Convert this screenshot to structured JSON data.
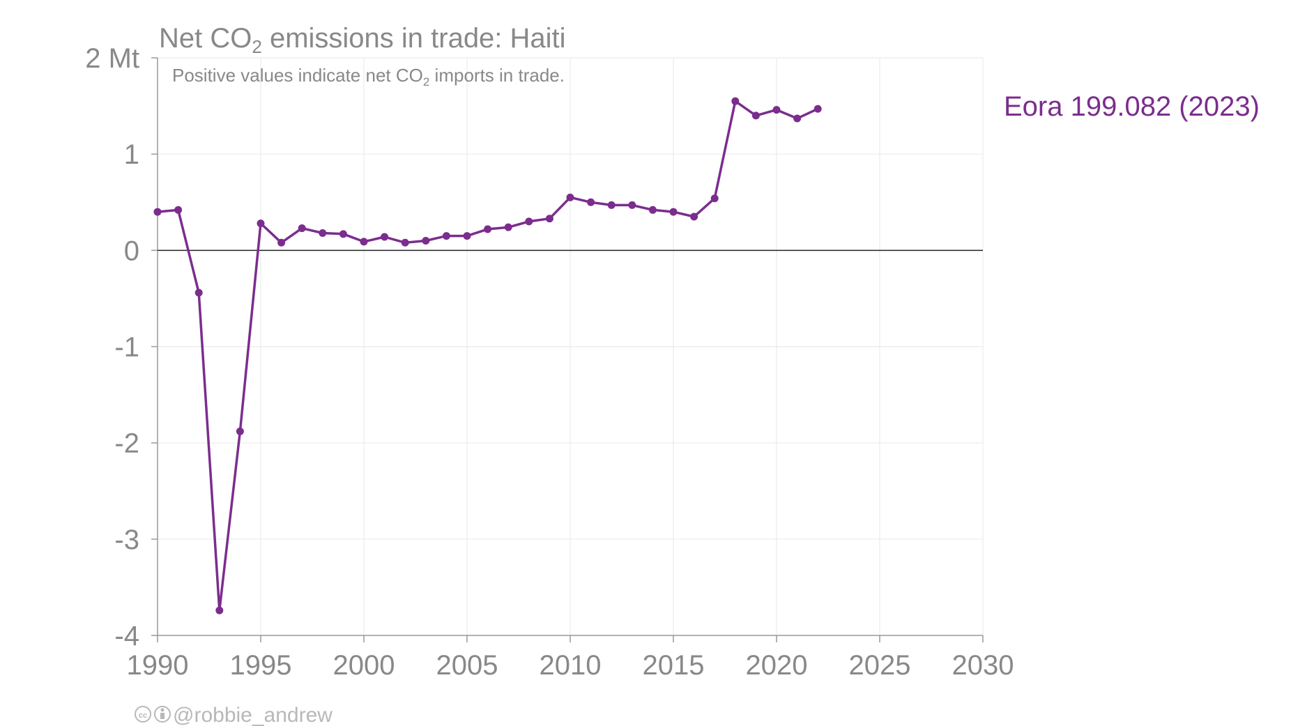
{
  "chart_data": {
    "type": "line",
    "title": {
      "prefix": "Net CO",
      "subscript": "2",
      "suffix": " emissions in trade: Haiti"
    },
    "subtitle": {
      "prefix": "Positive values indicate net CO",
      "subscript": "2",
      "suffix": " imports in trade."
    },
    "y_unit": "Mt",
    "y_tick_labels": [
      "2 Mt",
      "1",
      "0",
      "-1",
      "-2",
      "-3",
      "-4"
    ],
    "y_ticks": [
      2,
      1,
      0,
      -1,
      -2,
      -3,
      -4
    ],
    "ylim": [
      -4,
      2
    ],
    "x_ticks": [
      1990,
      1995,
      2000,
      2005,
      2010,
      2015,
      2020,
      2025,
      2030
    ],
    "x_tick_labels": [
      "1990",
      "1995",
      "2000",
      "2005",
      "2010",
      "2015",
      "2020",
      "2025",
      "2030"
    ],
    "xlim": [
      1990,
      2030
    ],
    "grid": true,
    "zero_line": true,
    "series": [
      {
        "name": "Eora 199.082 (2023)",
        "color": "#7b2d8e",
        "x": [
          1990,
          1991,
          1992,
          1993,
          1994,
          1995,
          1996,
          1997,
          1998,
          1999,
          2000,
          2001,
          2002,
          2003,
          2004,
          2005,
          2006,
          2007,
          2008,
          2009,
          2010,
          2011,
          2012,
          2013,
          2014,
          2015,
          2016,
          2017,
          2018,
          2019,
          2020,
          2021,
          2022
        ],
        "values": [
          0.4,
          0.42,
          -0.44,
          -3.74,
          -1.88,
          0.28,
          0.08,
          0.23,
          0.18,
          0.17,
          0.09,
          0.14,
          0.08,
          0.1,
          0.15,
          0.15,
          0.22,
          0.24,
          0.3,
          0.33,
          0.55,
          0.5,
          0.47,
          0.47,
          0.42,
          0.4,
          0.35,
          0.54,
          1.55,
          1.4,
          1.46,
          1.37,
          1.47
        ]
      }
    ],
    "legend_placement": "right"
  },
  "credit": {
    "icons": [
      "cc-icon",
      "attribution-icon"
    ],
    "handle": "@robbie_andrew"
  },
  "colors": {
    "text": "#888888",
    "grid": "#ebebeb",
    "axis": "#999999",
    "zero_line": "#222222",
    "credit": "#b8b8b8"
  }
}
